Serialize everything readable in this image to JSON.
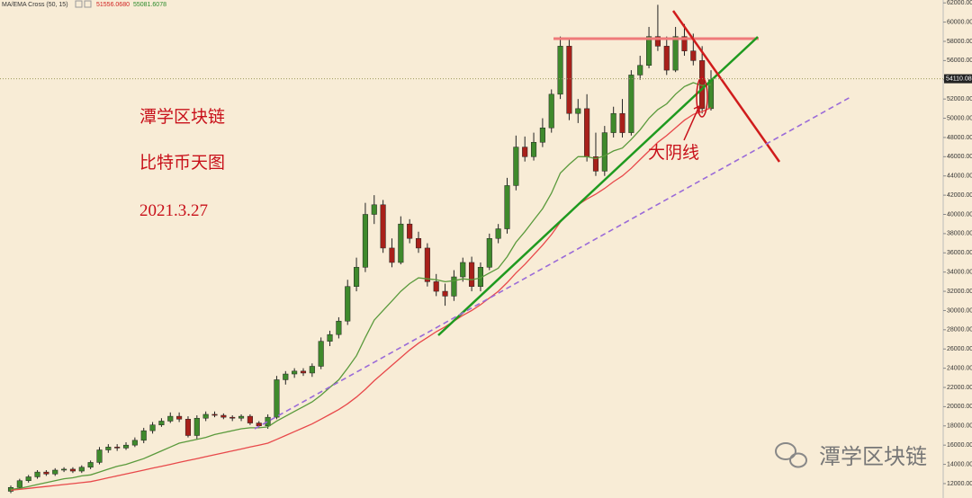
{
  "chart_data": {
    "type": "candlestick",
    "header": {
      "indicator": "MA/EMA Cross (50, 15)",
      "value_1": "51556.0680",
      "value_2": "55081.6078"
    },
    "annotations": [
      "潭学区块链",
      "比特币天图",
      "2021.3.27",
      "大阴线"
    ],
    "watermark": "潭学区块链",
    "last_price": 54110.08,
    "up_color": "#3f8a2c",
    "down_color": "#a8201a",
    "open": [
      11200,
      11600,
      12300,
      12700,
      13200,
      13000,
      13400,
      13500,
      13300,
      13700,
      14200,
      15500,
      15800,
      15700,
      16000,
      16500,
      17500,
      18100,
      18500,
      19000,
      18700,
      17000,
      18800,
      19200,
      19100,
      18900,
      18800,
      19000,
      18300,
      18000,
      18900,
      22800,
      23400,
      23700,
      23500,
      24200,
      26800,
      27500,
      28900,
      32500,
      34500,
      40000,
      41000,
      36500,
      35000,
      39000,
      37500,
      36500,
      33000,
      32000,
      31500,
      33500,
      35000,
      32500,
      34500,
      37500,
      38500,
      43000,
      47000,
      46000,
      47500,
      49000,
      52500,
      57500,
      50500,
      51000,
      46000,
      44500,
      48500,
      50500,
      48500,
      54500,
      55500,
      58500,
      57500,
      55000,
      58500,
      57000,
      56000,
      51000
    ],
    "high": [
      11800,
      12500,
      12900,
      13400,
      13400,
      13600,
      13700,
      13700,
      13900,
      14400,
      15800,
      16100,
      16100,
      16300,
      16800,
      17800,
      18400,
      18800,
      19400,
      19400,
      19000,
      19100,
      19500,
      19500,
      19300,
      19100,
      19200,
      19200,
      18500,
      19200,
      23200,
      23700,
      24000,
      24000,
      24500,
      27200,
      27900,
      29300,
      33200,
      35500,
      41200,
      42000,
      41500,
      37500,
      39800,
      39500,
      38200,
      37000,
      33800,
      32800,
      34200,
      35500,
      35600,
      35000,
      38000,
      39000,
      43800,
      48200,
      48100,
      48500,
      50000,
      53000,
      58500,
      58200,
      52000,
      52500,
      48500,
      49200,
      51200,
      52000,
      55000,
      56500,
      59500,
      61800,
      58500,
      59500,
      59800,
      58800,
      57500,
      55000
    ],
    "low": [
      11000,
      11400,
      12100,
      12500,
      12800,
      12800,
      13200,
      13100,
      13100,
      13500,
      14000,
      15200,
      15400,
      15500,
      15800,
      16200,
      17200,
      17900,
      18300,
      18400,
      16800,
      16600,
      18500,
      18900,
      18700,
      18500,
      18500,
      18100,
      17800,
      17700,
      18700,
      22300,
      23000,
      23200,
      23100,
      23900,
      26300,
      27100,
      28500,
      32000,
      34000,
      39000,
      36000,
      34500,
      34800,
      37000,
      36000,
      32500,
      31500,
      30500,
      31000,
      33000,
      32000,
      32000,
      34200,
      37000,
      38000,
      42500,
      45500,
      45600,
      47000,
      48500,
      52000,
      49800,
      49500,
      45500,
      44000,
      44000,
      48000,
      48000,
      48200,
      54000,
      55200,
      57000,
      54500,
      54800,
      56500,
      55500,
      50500,
      50800
    ],
    "close": [
      11600,
      12300,
      12700,
      13200,
      13000,
      13400,
      13500,
      13300,
      13700,
      14200,
      15500,
      15800,
      15700,
      16000,
      16500,
      17500,
      18100,
      18500,
      19000,
      18700,
      17000,
      18800,
      19200,
      19100,
      18900,
      18800,
      19000,
      18300,
      18000,
      18900,
      22800,
      23400,
      23700,
      23500,
      24200,
      26800,
      27500,
      28900,
      32500,
      34500,
      40000,
      41000,
      36500,
      35000,
      39000,
      37500,
      36500,
      33000,
      32000,
      31500,
      33500,
      35000,
      32500,
      34500,
      37500,
      38500,
      43000,
      47000,
      46000,
      47500,
      49000,
      52500,
      57500,
      50500,
      51000,
      46000,
      44500,
      48500,
      50500,
      48500,
      54500,
      55500,
      58500,
      57500,
      55000,
      58500,
      57000,
      56000,
      51000,
      54000
    ],
    "series": [
      {
        "color": "#5a9a3c",
        "values": [
          11400,
          11500,
          11700,
          11900,
          12100,
          12300,
          12500,
          12600,
          12800,
          12900,
          13200,
          13500,
          13800,
          14000,
          14300,
          14600,
          15000,
          15400,
          15800,
          16200,
          16400,
          16600,
          16800,
          17100,
          17300,
          17500,
          17700,
          17800,
          17800,
          17900,
          18500,
          19000,
          19500,
          20000,
          20500,
          21200,
          22000,
          22800,
          24000,
          25300,
          27200,
          29000,
          30000,
          31000,
          32000,
          32800,
          33400,
          33300,
          33200,
          33000,
          33100,
          33300,
          33200,
          33400,
          33900,
          34400,
          35600,
          37100,
          38200,
          39400,
          40600,
          42200,
          44300,
          45200,
          46000,
          46000,
          45800,
          46100,
          46600,
          46900,
          47800,
          48800,
          50000,
          50900,
          51500,
          52500,
          53300,
          53700,
          53400,
          53500
        ]
      },
      {
        "color": "#e8484a",
        "values": [
          11300,
          11400,
          11500,
          11600,
          11700,
          11800,
          11900,
          12000,
          12100,
          12200,
          12400,
          12600,
          12800,
          13000,
          13200,
          13400,
          13600,
          13800,
          14000,
          14200,
          14400,
          14600,
          14800,
          15000,
          15200,
          15400,
          15600,
          15800,
          16000,
          16200,
          16600,
          17000,
          17400,
          17800,
          18200,
          18700,
          19200,
          19700,
          20300,
          21000,
          21800,
          22700,
          23500,
          24300,
          25100,
          25900,
          26600,
          27200,
          27800,
          28300,
          28900,
          29500,
          30000,
          30600,
          31300,
          32000,
          32900,
          33900,
          34800,
          35800,
          36800,
          37900,
          39200,
          40200,
          41000,
          41600,
          42100,
          42700,
          43400,
          44000,
          44800,
          45700,
          46600,
          47500,
          48200,
          49000,
          49800,
          50400,
          50700,
          51100
        ]
      }
    ],
    "ylim": [
      10500,
      62300
    ],
    "yticks": [
      {
        "value": 12000,
        "label": "12000.00"
      },
      {
        "value": 14000,
        "label": "14000.00"
      },
      {
        "value": 16000,
        "label": "16000.00"
      },
      {
        "value": 18000,
        "label": "18000.00"
      },
      {
        "value": 20000,
        "label": "20000.00"
      },
      {
        "value": 22000,
        "label": "22000.00"
      },
      {
        "value": 24000,
        "label": "24000.00"
      },
      {
        "value": 26000,
        "label": "26000.00"
      },
      {
        "value": 28000,
        "label": "28000.00"
      },
      {
        "value": 30000,
        "label": "30000.00"
      },
      {
        "value": 32000,
        "label": "32000.00"
      },
      {
        "value": 34000,
        "label": "34000.00"
      },
      {
        "value": 36000,
        "label": "36000.00"
      },
      {
        "value": 38000,
        "label": "38000.00"
      },
      {
        "value": 40000,
        "label": "40000.00"
      },
      {
        "value": 42000,
        "label": "42000.00"
      },
      {
        "value": 44000,
        "label": "44000.00"
      },
      {
        "value": 46000,
        "label": "46000.00"
      },
      {
        "value": 48000,
        "label": "48000.00"
      },
      {
        "value": 50000,
        "label": "50000.00"
      },
      {
        "value": 52000,
        "label": "52000.00"
      },
      {
        "value": 54000,
        "label": "54000.00"
      },
      {
        "value": 56000,
        "label": "56000.00"
      },
      {
        "value": 58000,
        "label": "58000.00"
      },
      {
        "value": 60000,
        "label": "60000.00"
      },
      {
        "value": 62000,
        "label": "62000.00"
      }
    ]
  }
}
